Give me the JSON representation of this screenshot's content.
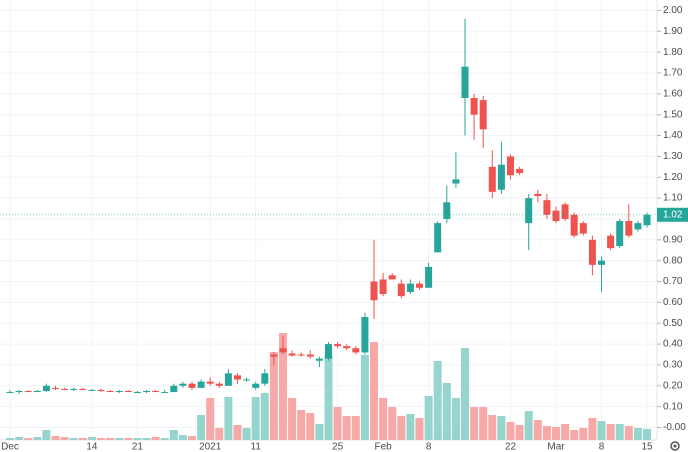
{
  "chart_data": {
    "type": "candlestick",
    "categories": [
      "Dec",
      null,
      null,
      null,
      null,
      null,
      null,
      null,
      null,
      "14",
      null,
      null,
      null,
      null,
      "21",
      null,
      null,
      null,
      null,
      null,
      null,
      null,
      "2021",
      null,
      null,
      null,
      null,
      "11",
      null,
      null,
      null,
      null,
      null,
      null,
      null,
      null,
      "25",
      null,
      null,
      null,
      null,
      "Feb",
      null,
      null,
      null,
      null,
      "8",
      null,
      null,
      null,
      null,
      null,
      null,
      null,
      null,
      "22",
      null,
      null,
      null,
      null,
      "Mar",
      null,
      null,
      null,
      null,
      "8",
      null,
      null,
      null,
      null,
      "15"
    ],
    "open": [
      0.17,
      0.17,
      0.175,
      0.17,
      0.175,
      0.19,
      0.185,
      0.18,
      0.185,
      0.18,
      0.18,
      0.175,
      0.17,
      0.175,
      0.17,
      0.17,
      0.175,
      0.17,
      0.17,
      0.2,
      0.21,
      0.19,
      0.22,
      0.21,
      0.2,
      0.25,
      0.23,
      0.19,
      0.21,
      0.35,
      0.38,
      0.355,
      0.35,
      0.35,
      0.32,
      0.33,
      0.4,
      0.39,
      0.38,
      0.36,
      0.7,
      0.71,
      0.73,
      0.69,
      0.65,
      0.69,
      0.67,
      0.84,
      1.0,
      1.17,
      1.58,
      1.58,
      1.57,
      1.25,
      1.14,
      1.3,
      1.24,
      0.98,
      1.12,
      1.09,
      1.04,
      1.07,
      1.02,
      0.98,
      0.9,
      0.78,
      0.92,
      0.87,
      0.99,
      0.95,
      0.97
    ],
    "high": [
      0.18,
      0.18,
      0.18,
      0.18,
      0.21,
      0.2,
      0.19,
      0.19,
      0.19,
      0.185,
      0.185,
      0.18,
      0.18,
      0.18,
      0.175,
      0.18,
      0.18,
      0.18,
      0.21,
      0.22,
      0.22,
      0.23,
      0.24,
      0.22,
      0.28,
      0.26,
      0.24,
      0.22,
      0.28,
      0.36,
      0.44,
      0.37,
      0.36,
      0.37,
      0.34,
      0.41,
      0.41,
      0.4,
      0.39,
      0.55,
      0.9,
      0.74,
      0.74,
      0.71,
      0.71,
      0.7,
      0.79,
      0.99,
      1.16,
      1.32,
      1.96,
      1.6,
      1.59,
      1.33,
      1.37,
      1.31,
      1.25,
      1.12,
      1.14,
      1.12,
      1.06,
      1.08,
      1.03,
      0.99,
      0.92,
      0.82,
      0.93,
      1.0,
      1.07,
      0.99,
      1.03
    ],
    "low": [
      0.165,
      0.16,
      0.17,
      0.17,
      0.17,
      0.18,
      0.18,
      0.175,
      0.18,
      0.175,
      0.17,
      0.17,
      0.165,
      0.17,
      0.165,
      0.165,
      0.17,
      0.165,
      0.17,
      0.19,
      0.18,
      0.19,
      0.2,
      0.19,
      0.2,
      0.21,
      0.22,
      0.18,
      0.2,
      0.3,
      0.35,
      0.34,
      0.34,
      0.33,
      0.29,
      0.32,
      0.38,
      0.37,
      0.35,
      0.35,
      0.52,
      0.63,
      0.71,
      0.62,
      0.64,
      0.66,
      0.67,
      0.84,
      0.98,
      1.15,
      1.4,
      1.38,
      1.34,
      1.1,
      1.12,
      1.19,
      1.21,
      0.85,
      1.08,
      1.0,
      0.98,
      0.99,
      0.91,
      0.92,
      0.73,
      0.65,
      0.85,
      0.86,
      0.91,
      0.94,
      0.96
    ],
    "close": [
      0.17,
      0.175,
      0.17,
      0.175,
      0.2,
      0.185,
      0.18,
      0.185,
      0.18,
      0.18,
      0.175,
      0.17,
      0.175,
      0.17,
      0.17,
      0.175,
      0.17,
      0.17,
      0.2,
      0.21,
      0.19,
      0.22,
      0.21,
      0.2,
      0.26,
      0.23,
      0.23,
      0.21,
      0.26,
      0.34,
      0.36,
      0.345,
      0.345,
      0.34,
      0.33,
      0.4,
      0.39,
      0.38,
      0.36,
      0.53,
      0.61,
      0.64,
      0.71,
      0.63,
      0.69,
      0.67,
      0.77,
      0.98,
      1.08,
      1.19,
      1.73,
      1.5,
      1.43,
      1.13,
      1.26,
      1.21,
      1.22,
      1.1,
      1.11,
      1.02,
      0.99,
      1.0,
      0.92,
      0.93,
      0.78,
      0.8,
      0.86,
      0.99,
      0.92,
      0.98,
      1.02
    ],
    "volume": [
      2,
      3,
      2,
      3,
      10,
      4,
      3,
      2,
      2,
      3,
      2,
      2,
      2,
      2,
      2,
      2,
      3,
      2,
      10,
      5,
      4,
      25,
      42,
      12,
      43,
      15,
      12,
      43,
      47,
      88,
      107,
      42,
      30,
      27,
      16,
      85,
      33,
      24,
      24,
      85,
      98,
      42,
      33,
      24,
      26,
      22,
      44,
      79,
      57,
      42,
      92,
      33,
      33,
      25,
      24,
      18,
      15,
      29,
      20,
      14,
      13,
      16,
      10,
      12,
      22,
      19,
      16,
      16,
      14,
      12,
      11
    ],
    "up_color": "#26a69a",
    "down_color": "#ef5350",
    "volume_up_color": "#96d4ce",
    "volume_down_color": "#f6a9a7",
    "last_price": 1.02,
    "ylim": [
      -0.06,
      2.05
    ],
    "yticks": [
      {
        "value": 2,
        "label": "2.00"
      },
      {
        "value": 1.9,
        "label": "1.90"
      },
      {
        "value": 1.8,
        "label": "1.80"
      },
      {
        "value": 1.7,
        "label": "1.70"
      },
      {
        "value": 1.6,
        "label": "1.60"
      },
      {
        "value": 1.5,
        "label": "1.50"
      },
      {
        "value": 1.4,
        "label": "1.40"
      },
      {
        "value": 1.3,
        "label": "1.30"
      },
      {
        "value": 1.2,
        "label": "1.20"
      },
      {
        "value": 1.1,
        "label": "1.10"
      },
      {
        "value": 1,
        "label": "1.00"
      },
      {
        "value": 0.9,
        "label": "0.90"
      },
      {
        "value": 0.8,
        "label": "0.80"
      },
      {
        "value": 0.7,
        "label": "0.70"
      },
      {
        "value": 0.6,
        "label": "0.60"
      },
      {
        "value": 0.5,
        "label": "0.50"
      },
      {
        "value": 0.4,
        "label": "0.40"
      },
      {
        "value": 0.3,
        "label": "0.30"
      },
      {
        "value": 0.2,
        "label": "0.20"
      },
      {
        "value": 0.1,
        "label": "0.10"
      },
      {
        "value": 0,
        "label": "-0.00"
      }
    ],
    "grid": true
  }
}
